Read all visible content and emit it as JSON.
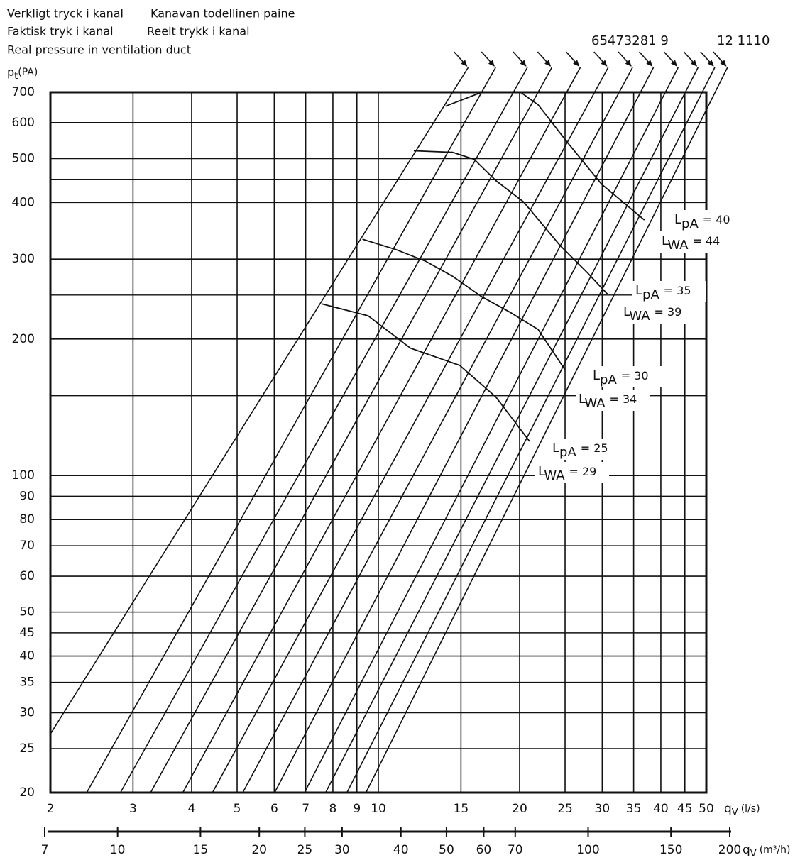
{
  "chart_data": {
    "type": "duct-pressure",
    "title_lines": [
      "Verkligt tryck i kanal",
      "Kanavan todellinen paine",
      "Faktisk tryk i kanal",
      "Reelt trykk i kanal",
      "Real pressure in ventilation duct"
    ],
    "ylabel": "p",
    "ylabel_sub": "t",
    "ylabel_unit": "(PA)",
    "xlabel": "q",
    "xlabel_sub": "V",
    "xlabel_unit": "(l/s)",
    "x2label": "q",
    "x2label_sub": "V",
    "x2label_unit": "(m³/h)",
    "xscale": "log",
    "yscale": "log",
    "xlim": [
      2,
      50
    ],
    "ylim": [
      20,
      700
    ],
    "xticks": [
      2,
      3,
      4,
      5,
      6,
      7,
      8,
      9,
      10,
      15,
      20,
      25,
      30,
      35,
      40,
      45,
      50
    ],
    "yticks": [
      20,
      25,
      30,
      35,
      40,
      45,
      50,
      60,
      70,
      80,
      90,
      100,
      200,
      300,
      400,
      500,
      600,
      700
    ],
    "y_minor_ticks": [
      150,
      250,
      450
    ],
    "x2lim": [
      7,
      200
    ],
    "x2ticks": [
      7,
      10,
      15,
      20,
      25,
      30,
      40,
      50,
      60,
      70,
      100,
      150,
      200
    ],
    "grid": true,
    "line_labels": [
      "65473281 9",
      "12 1110"
    ],
    "duct_lines": [
      {
        "q_bottom": 1.67,
        "q_top": 14.4
      },
      {
        "q_bottom": 2.39,
        "q_top": 16.6
      },
      {
        "q_bottom": 2.82,
        "q_top": 19.4
      },
      {
        "q_bottom": 3.27,
        "q_top": 21.9
      },
      {
        "q_bottom": 3.83,
        "q_top": 25.2
      },
      {
        "q_bottom": 4.43,
        "q_top": 28.9
      },
      {
        "q_bottom": 5.14,
        "q_top": 32.6
      },
      {
        "q_bottom": 6.01,
        "q_top": 36.2
      },
      {
        "q_bottom": 6.96,
        "q_top": 40.9
      },
      {
        "q_bottom": 7.72,
        "q_top": 45.1
      },
      {
        "q_bottom": 8.57,
        "q_top": 49.0
      },
      {
        "q_bottom": 9.41,
        "q_top": 52.2
      }
    ],
    "level_symbol": "L",
    "lpa_sub": "pA",
    "lwa_sub": "WA",
    "equals": "=",
    "sound_curves": [
      {
        "lpa": 40,
        "lwa": 44,
        "x": [
          13.9,
          16.6,
          20.1,
          21.9,
          25.2,
          29.9,
          36.9
        ],
        "y": [
          652,
          700,
          700,
          657,
          545,
          439,
          366
        ]
      },
      {
        "lpa": 35,
        "lwa": 39,
        "x": [
          11.9,
          14.4,
          16.0,
          17.8,
          20.4,
          24.3,
          27.9,
          30.8
        ],
        "y": [
          520,
          516,
          498,
          447,
          401,
          323,
          280,
          251
        ]
      },
      {
        "lpa": 30,
        "lwa": 34,
        "x": [
          9.25,
          10.9,
          12.6,
          14.4,
          16.6,
          19.1,
          21.9,
          25.0
        ],
        "y": [
          332,
          315,
          297,
          275,
          248,
          229,
          210,
          171
        ]
      },
      {
        "lpa": 25,
        "lwa": 29,
        "x": [
          7.59,
          9.51,
          11.7,
          14.9,
          17.8,
          21.0
        ],
        "y": [
          239,
          225,
          191,
          175,
          149,
          119
        ]
      }
    ]
  }
}
